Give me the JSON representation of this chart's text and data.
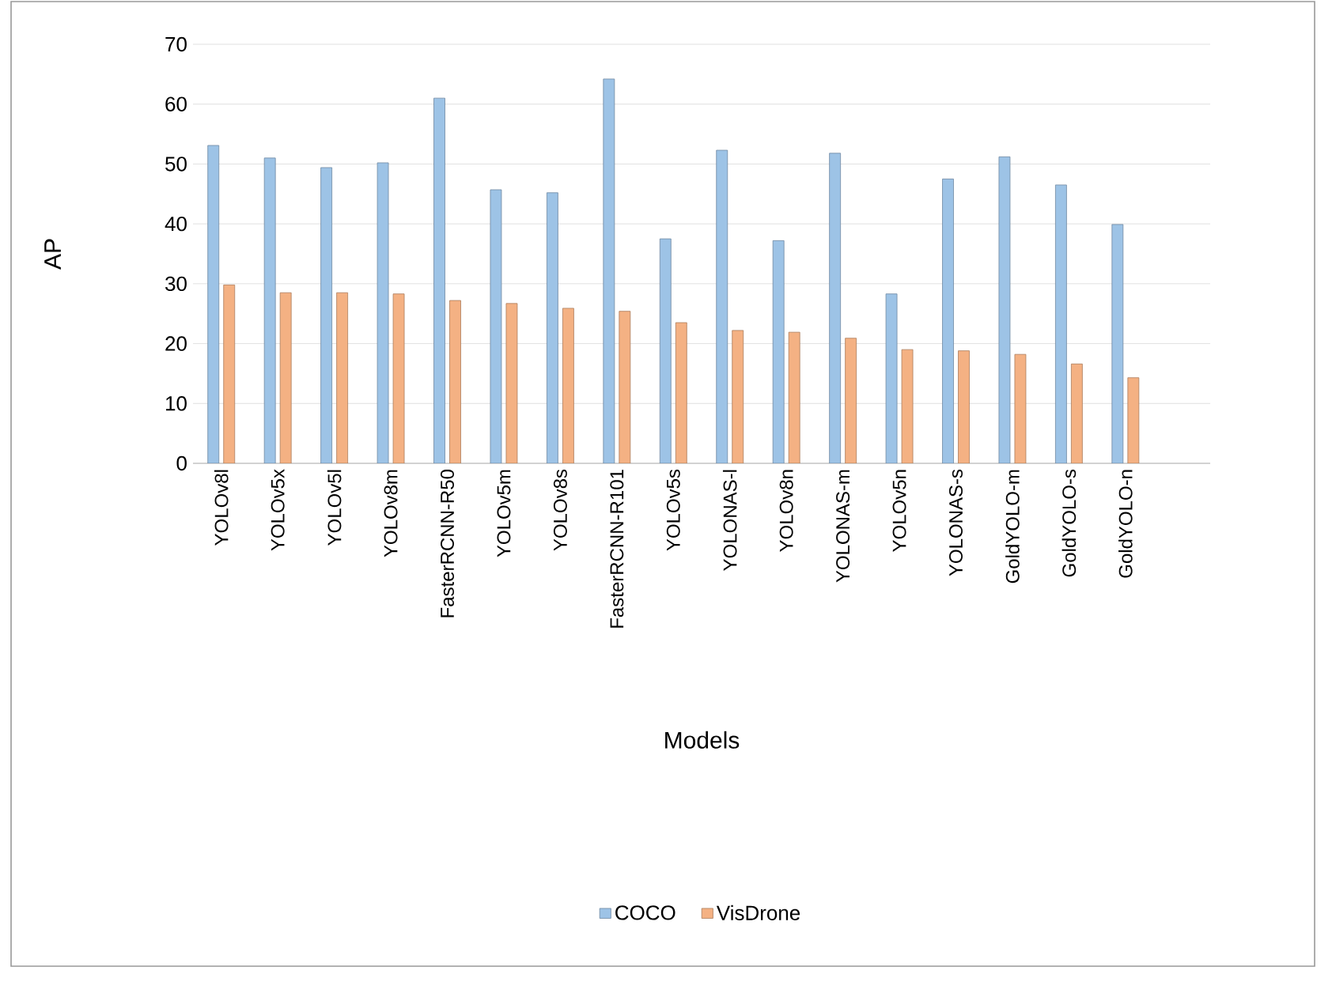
{
  "chart_data": {
    "type": "bar",
    "xlabel": "Models",
    "ylabel": "AP",
    "categories": [
      "YOLOv8l",
      "YOLOv5x",
      "YOLOv5l",
      "YOLOv8m",
      "FasterRCNN-R50",
      "YOLOv5m",
      "YOLOv8s",
      "FasterRCNN-R101",
      "YOLOv5s",
      "YOLONAS-l",
      "YOLOv8n",
      "YOLONAS-m",
      "YOLOv5n",
      "YOLONAS-s",
      "GoldYOLO-m",
      "GoldYOLO-s",
      "GoldYOLO-n",
      null
    ],
    "series": [
      {
        "name": "COCO",
        "color": "#9dc3e6",
        "values": [
          53.1,
          51,
          49.4,
          50.2,
          61,
          45.7,
          45.2,
          64.2,
          37.5,
          52.3,
          37.2,
          51.8,
          28.3,
          47.5,
          51.2,
          46.5,
          39.9,
          null
        ]
      },
      {
        "name": "VisDrone",
        "color": "#f4b183",
        "values": [
          29.8,
          28.5,
          28.5,
          28.3,
          27.2,
          26.7,
          25.9,
          25.4,
          23.5,
          22.2,
          21.9,
          20.9,
          19,
          18.8,
          18.2,
          16.6,
          14.3,
          null
        ]
      }
    ],
    "ylim": [
      0,
      70
    ],
    "yticks": [
      0,
      10,
      20,
      30,
      40,
      50,
      60,
      70
    ],
    "grid": "y",
    "legend": "bottom"
  }
}
